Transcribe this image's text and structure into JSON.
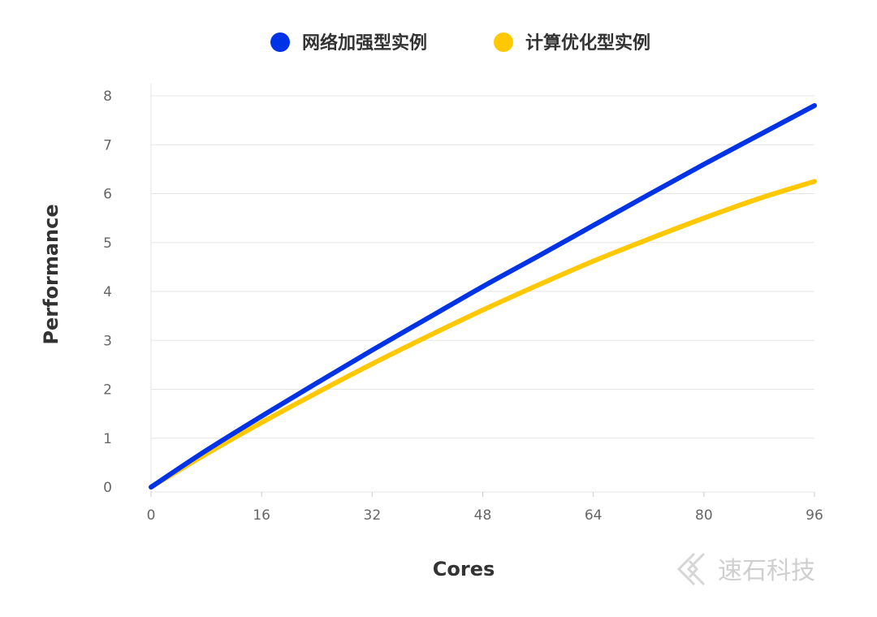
{
  "watermark": {
    "text": "速石科技",
    "color": "#cfcfcf"
  },
  "chart_data": {
    "type": "line",
    "xlabel": "Cores",
    "ylabel": "Performance",
    "xlim": [
      0,
      96
    ],
    "ylim": [
      0,
      8
    ],
    "xticks": [
      0,
      16,
      32,
      48,
      64,
      80,
      96
    ],
    "yticks": [
      0,
      1,
      2,
      3,
      4,
      5,
      6,
      7,
      8
    ],
    "grid": "horizontal",
    "legend_position": "top-center",
    "series": [
      {
        "name": "网络加强型实例",
        "color": "#0033e6",
        "x": [
          0,
          8,
          16,
          24,
          32,
          40,
          48,
          56,
          64,
          72,
          80,
          88,
          96
        ],
        "y": [
          0,
          0.75,
          1.45,
          2.13,
          2.8,
          3.45,
          4.1,
          4.72,
          5.35,
          5.98,
          6.6,
          7.2,
          7.8
        ]
      },
      {
        "name": "计算优化型实例",
        "color": "#ffc800",
        "x": [
          0,
          8,
          16,
          24,
          32,
          40,
          48,
          56,
          64,
          72,
          80,
          88,
          96
        ],
        "y": [
          0,
          0.68,
          1.32,
          1.93,
          2.52,
          3.08,
          3.62,
          4.13,
          4.62,
          5.07,
          5.5,
          5.9,
          6.25
        ]
      }
    ]
  }
}
